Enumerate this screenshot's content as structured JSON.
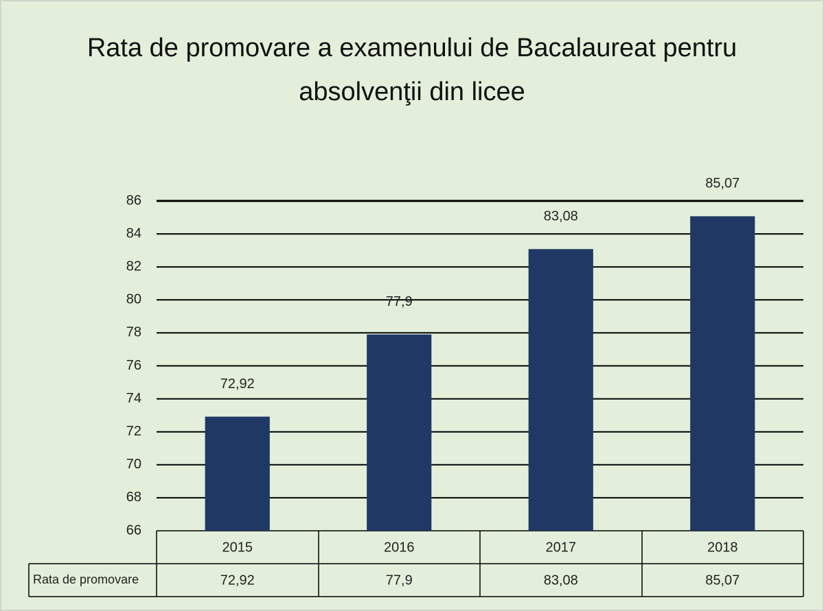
{
  "chart_data": {
    "type": "bar",
    "title": "Rata de promovare a examenului de Bacalaureat pentru absolvenţii din licee",
    "categories": [
      "2015",
      "2016",
      "2017",
      "2018"
    ],
    "series": [
      {
        "name": "Rata de promovare",
        "color": "#203864",
        "values": [
          72.92,
          77.9,
          83.08,
          85.07
        ],
        "value_labels": [
          "72,92",
          "77,9",
          "83,08",
          "85,07"
        ]
      }
    ],
    "ylim": [
      66,
      86
    ],
    "yticks": [
      66,
      68,
      70,
      72,
      74,
      76,
      78,
      80,
      82,
      84,
      86
    ],
    "grid": true
  }
}
